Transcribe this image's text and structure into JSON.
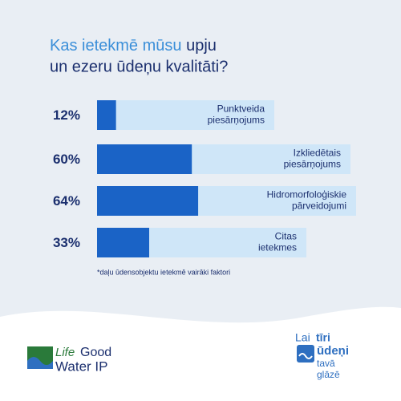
{
  "chart_data": {
    "type": "bar",
    "title": [
      "Kas ietekmē mūsu",
      "upju",
      "un ezeru ūdeņu kvalitāti?"
    ],
    "categories": [
      [
        "Punktveida",
        "piesārņojums"
      ],
      [
        "Izkliedētais",
        "piesārņojums"
      ],
      [
        "Hidromorfoloģiskie",
        "pārveidojumi"
      ],
      [
        "Citas",
        "ietekmes"
      ]
    ],
    "values": [
      12,
      60,
      64,
      33
    ],
    "value_labels": [
      "12%",
      "60%",
      "64%",
      "33%"
    ],
    "xlim": [
      0,
      100
    ],
    "color": "#1a63c6",
    "footnote": "*daļu ūdensobjektu ietekmē vairāki faktori"
  },
  "logos": {
    "left": [
      "Life",
      "Good",
      "Water IP"
    ],
    "right": [
      "Lai",
      "tīri",
      "ūdeņi",
      "tavā",
      "glāzē"
    ]
  }
}
